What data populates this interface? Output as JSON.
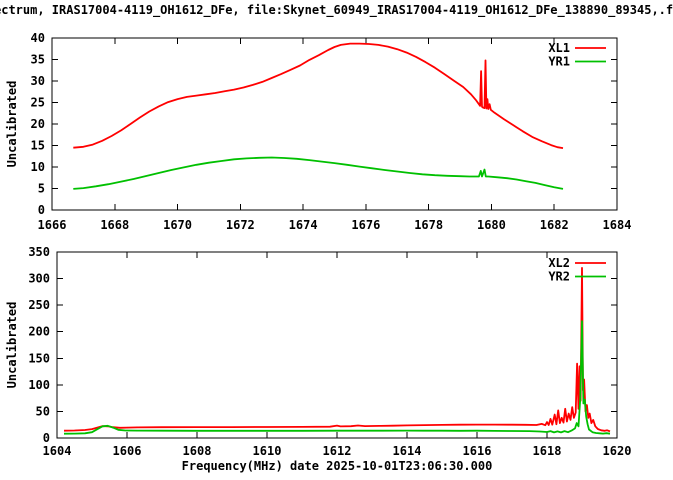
{
  "title": "ectrum, IRAS17004-4119_OH1612_DFe, file:Skynet_60949_IRAS17004-4119_OH1612_DFe_138890_89345,.f",
  "colors": {
    "background": "#ffffff",
    "axis": "#000000",
    "red": "#ff0000",
    "green": "#00c000"
  },
  "chart_data": [
    {
      "type": "line",
      "panel": "top",
      "title": "",
      "xlabel": "",
      "ylabel": "Uncalibrated",
      "xlim": [
        1666,
        1684
      ],
      "ylim": [
        0,
        40
      ],
      "xticks": [
        1666,
        1668,
        1670,
        1672,
        1674,
        1676,
        1678,
        1680,
        1682,
        1684
      ],
      "yticks": [
        0,
        5,
        10,
        15,
        20,
        25,
        30,
        35,
        40
      ],
      "grid": false,
      "legend_position": "top-right",
      "legend": [
        "XL1",
        "YR1"
      ],
      "series": [
        {
          "name": "XL1",
          "color": "#ff0000",
          "points": [
            [
              1666.68,
              14.5
            ],
            [
              1667.0,
              14.7
            ],
            [
              1667.3,
              15.2
            ],
            [
              1667.6,
              16.1
            ],
            [
              1667.9,
              17.2
            ],
            [
              1668.2,
              18.5
            ],
            [
              1668.5,
              20.0
            ],
            [
              1668.8,
              21.5
            ],
            [
              1669.1,
              22.9
            ],
            [
              1669.4,
              24.1
            ],
            [
              1669.7,
              25.1
            ],
            [
              1670.0,
              25.8
            ],
            [
              1670.3,
              26.3
            ],
            [
              1670.6,
              26.6
            ],
            [
              1670.9,
              26.9
            ],
            [
              1671.2,
              27.2
            ],
            [
              1671.5,
              27.6
            ],
            [
              1671.8,
              28.0
            ],
            [
              1672.1,
              28.5
            ],
            [
              1672.4,
              29.1
            ],
            [
              1672.7,
              29.8
            ],
            [
              1673.0,
              30.7
            ],
            [
              1673.3,
              31.6
            ],
            [
              1673.6,
              32.6
            ],
            [
              1673.9,
              33.6
            ],
            [
              1674.2,
              34.9
            ],
            [
              1674.5,
              36.0
            ],
            [
              1674.8,
              37.2
            ],
            [
              1675.0,
              37.9
            ],
            [
              1675.2,
              38.4
            ],
            [
              1675.5,
              38.7
            ],
            [
              1675.8,
              38.7
            ],
            [
              1676.1,
              38.6
            ],
            [
              1676.4,
              38.4
            ],
            [
              1676.7,
              38.0
            ],
            [
              1677.0,
              37.4
            ],
            [
              1677.3,
              36.6
            ],
            [
              1677.6,
              35.6
            ],
            [
              1677.9,
              34.4
            ],
            [
              1678.2,
              33.1
            ],
            [
              1678.5,
              31.6
            ],
            [
              1678.8,
              30.1
            ],
            [
              1679.1,
              28.6
            ],
            [
              1679.35,
              26.9
            ],
            [
              1679.5,
              25.6
            ],
            [
              1679.6,
              24.6
            ],
            [
              1679.64,
              24.2
            ],
            [
              1679.67,
              32.3
            ],
            [
              1679.7,
              24.0
            ],
            [
              1679.74,
              23.8
            ],
            [
              1679.78,
              23.7
            ],
            [
              1679.81,
              34.8
            ],
            [
              1679.84,
              23.6
            ],
            [
              1679.87,
              25.8
            ],
            [
              1679.9,
              23.5
            ],
            [
              1679.94,
              24.6
            ],
            [
              1679.98,
              23.3
            ],
            [
              1680.1,
              22.6
            ],
            [
              1680.4,
              21.1
            ],
            [
              1680.7,
              19.7
            ],
            [
              1681.0,
              18.3
            ],
            [
              1681.3,
              17.0
            ],
            [
              1681.6,
              16.0
            ],
            [
              1681.9,
              15.1
            ],
            [
              1682.1,
              14.6
            ],
            [
              1682.28,
              14.4
            ]
          ]
        },
        {
          "name": "YR1",
          "color": "#00c000",
          "points": [
            [
              1666.68,
              4.9
            ],
            [
              1667.0,
              5.1
            ],
            [
              1667.4,
              5.5
            ],
            [
              1667.8,
              6.0
            ],
            [
              1668.2,
              6.6
            ],
            [
              1668.6,
              7.2
            ],
            [
              1669.0,
              7.9
            ],
            [
              1669.4,
              8.6
            ],
            [
              1669.8,
              9.3
            ],
            [
              1670.2,
              9.9
            ],
            [
              1670.6,
              10.5
            ],
            [
              1671.0,
              11.0
            ],
            [
              1671.4,
              11.4
            ],
            [
              1671.8,
              11.8
            ],
            [
              1672.2,
              12.0
            ],
            [
              1672.6,
              12.15
            ],
            [
              1673.0,
              12.2
            ],
            [
              1673.4,
              12.1
            ],
            [
              1673.8,
              11.9
            ],
            [
              1674.2,
              11.6
            ],
            [
              1674.6,
              11.25
            ],
            [
              1675.0,
              10.9
            ],
            [
              1675.4,
              10.5
            ],
            [
              1675.8,
              10.1
            ],
            [
              1676.2,
              9.7
            ],
            [
              1676.6,
              9.3
            ],
            [
              1677.0,
              8.95
            ],
            [
              1677.4,
              8.6
            ],
            [
              1677.8,
              8.3
            ],
            [
              1678.2,
              8.1
            ],
            [
              1678.6,
              7.95
            ],
            [
              1679.0,
              7.85
            ],
            [
              1679.3,
              7.8
            ],
            [
              1679.6,
              7.8
            ],
            [
              1679.66,
              9.1
            ],
            [
              1679.7,
              7.8
            ],
            [
              1679.78,
              9.4
            ],
            [
              1679.82,
              7.8
            ],
            [
              1679.9,
              7.8
            ],
            [
              1680.2,
              7.6
            ],
            [
              1680.5,
              7.4
            ],
            [
              1680.8,
              7.1
            ],
            [
              1681.1,
              6.7
            ],
            [
              1681.4,
              6.3
            ],
            [
              1681.7,
              5.8
            ],
            [
              1682.0,
              5.3
            ],
            [
              1682.28,
              4.9
            ]
          ]
        }
      ]
    },
    {
      "type": "line",
      "panel": "bottom",
      "title": "",
      "xlabel": "Frequency(MHz) date 2025-10-01T23:06:30.000",
      "ylabel": "Uncalibrated",
      "xlim": [
        1604,
        1620
      ],
      "ylim": [
        0,
        350
      ],
      "xticks": [
        1604,
        1606,
        1608,
        1610,
        1612,
        1614,
        1616,
        1618,
        1620
      ],
      "yticks": [
        0,
        50,
        100,
        150,
        200,
        250,
        300,
        350
      ],
      "grid": false,
      "legend_position": "top-right",
      "legend": [
        "XL2",
        "YR2"
      ],
      "series": [
        {
          "name": "XL2",
          "color": "#ff0000",
          "points": [
            [
              1604.2,
              13.8
            ],
            [
              1604.5,
              14.2
            ],
            [
              1604.8,
              15.0
            ],
            [
              1605.0,
              16.8
            ],
            [
              1605.15,
              19.5
            ],
            [
              1605.3,
              22.3
            ],
            [
              1605.45,
              22.0
            ],
            [
              1605.6,
              20.3
            ],
            [
              1605.8,
              19.2
            ],
            [
              1606.0,
              19.6
            ],
            [
              1606.3,
              20.0
            ],
            [
              1607.0,
              20.3
            ],
            [
              1608.0,
              20.5
            ],
            [
              1609.0,
              20.6
            ],
            [
              1610.0,
              20.7
            ],
            [
              1611.0,
              20.9
            ],
            [
              1611.8,
              21.2
            ],
            [
              1612.0,
              23.3
            ],
            [
              1612.1,
              21.8
            ],
            [
              1612.4,
              22.2
            ],
            [
              1612.6,
              23.6
            ],
            [
              1612.8,
              22.4
            ],
            [
              1613.2,
              22.8
            ],
            [
              1613.6,
              23.2
            ],
            [
              1614.0,
              23.7
            ],
            [
              1614.5,
              24.2
            ],
            [
              1615.0,
              24.7
            ],
            [
              1615.5,
              25.0
            ],
            [
              1616.0,
              25.2
            ],
            [
              1616.5,
              25.3
            ],
            [
              1617.0,
              25.1
            ],
            [
              1617.4,
              24.8
            ],
            [
              1617.7,
              24.4
            ],
            [
              1617.85,
              26.5
            ],
            [
              1617.95,
              24.0
            ],
            [
              1618.0,
              30.0
            ],
            [
              1618.05,
              24.5
            ],
            [
              1618.1,
              36.0
            ],
            [
              1618.15,
              25.0
            ],
            [
              1618.22,
              44.0
            ],
            [
              1618.27,
              26.0
            ],
            [
              1618.32,
              52.0
            ],
            [
              1618.37,
              28.0
            ],
            [
              1618.42,
              38.0
            ],
            [
              1618.47,
              29.0
            ],
            [
              1618.52,
              55.0
            ],
            [
              1618.57,
              31.0
            ],
            [
              1618.62,
              46.0
            ],
            [
              1618.67,
              34.0
            ],
            [
              1618.72,
              58.0
            ],
            [
              1618.77,
              38.0
            ],
            [
              1618.82,
              48.0
            ],
            [
              1618.86,
              140.0
            ],
            [
              1618.9,
              55.0
            ],
            [
              1618.93,
              135.0
            ],
            [
              1618.96,
              70.0
            ],
            [
              1619.0,
              320.0
            ],
            [
              1619.03,
              90.0
            ],
            [
              1619.06,
              110.0
            ],
            [
              1619.1,
              50.0
            ],
            [
              1619.14,
              62.0
            ],
            [
              1619.18,
              38.0
            ],
            [
              1619.22,
              46.0
            ],
            [
              1619.27,
              28.0
            ],
            [
              1619.32,
              34.0
            ],
            [
              1619.38,
              22.0
            ],
            [
              1619.45,
              17.0
            ],
            [
              1619.55,
              14.5
            ],
            [
              1619.65,
              13.5
            ],
            [
              1619.72,
              14.5
            ],
            [
              1619.8,
              12.5
            ]
          ]
        },
        {
          "name": "YR2",
          "color": "#00c000",
          "points": [
            [
              1604.2,
              8.0
            ],
            [
              1604.5,
              8.2
            ],
            [
              1604.8,
              8.8
            ],
            [
              1605.0,
              11.0
            ],
            [
              1605.15,
              16.5
            ],
            [
              1605.3,
              22.0
            ],
            [
              1605.45,
              23.0
            ],
            [
              1605.6,
              19.5
            ],
            [
              1605.75,
              15.5
            ],
            [
              1605.95,
              14.2
            ],
            [
              1606.3,
              13.9
            ],
            [
              1607.0,
              13.7
            ],
            [
              1608.0,
              13.6
            ],
            [
              1609.0,
              13.5
            ],
            [
              1610.0,
              13.5
            ],
            [
              1611.0,
              13.6
            ],
            [
              1612.0,
              13.8
            ],
            [
              1613.0,
              13.8
            ],
            [
              1614.0,
              13.9
            ],
            [
              1614.5,
              13.7
            ],
            [
              1615.0,
              13.8
            ],
            [
              1615.5,
              13.6
            ],
            [
              1616.0,
              13.7
            ],
            [
              1616.5,
              13.4
            ],
            [
              1617.0,
              13.2
            ],
            [
              1617.5,
              12.9
            ],
            [
              1617.8,
              12.2
            ],
            [
              1618.0,
              11.3
            ],
            [
              1618.1,
              13.0
            ],
            [
              1618.2,
              10.5
            ],
            [
              1618.3,
              12.5
            ],
            [
              1618.4,
              10.5
            ],
            [
              1618.5,
              13.0
            ],
            [
              1618.6,
              11.0
            ],
            [
              1618.7,
              14.0
            ],
            [
              1618.8,
              18.0
            ],
            [
              1618.85,
              28.0
            ],
            [
              1618.9,
              22.0
            ],
            [
              1618.95,
              75.0
            ],
            [
              1619.0,
              220.0
            ],
            [
              1619.04,
              65.0
            ],
            [
              1619.08,
              72.0
            ],
            [
              1619.12,
              40.0
            ],
            [
              1619.16,
              26.0
            ],
            [
              1619.2,
              16.0
            ],
            [
              1619.3,
              11.0
            ],
            [
              1619.4,
              9.5
            ],
            [
              1619.5,
              8.8
            ],
            [
              1619.6,
              8.2
            ],
            [
              1619.7,
              9.0
            ],
            [
              1619.8,
              8.0
            ]
          ]
        }
      ]
    }
  ]
}
